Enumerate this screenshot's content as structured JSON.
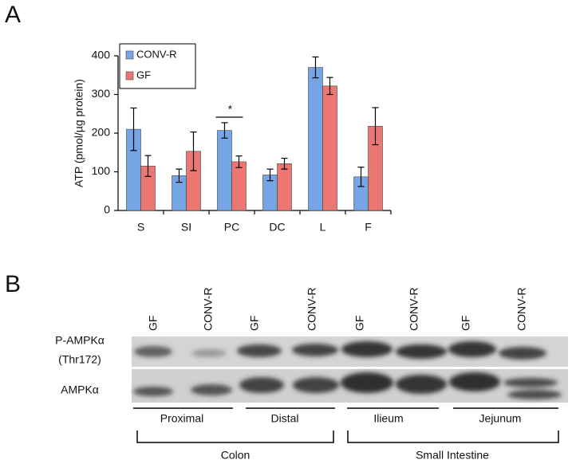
{
  "chart_data": {
    "type": "bar",
    "panel_label": "A",
    "ylabel": "ATP (pmol/µg protein)",
    "categories": [
      "S",
      "SI",
      "PC",
      "DC",
      "L",
      "F"
    ],
    "series": [
      {
        "name": "CONV-R",
        "color": "#76a5e6",
        "values": [
          210,
          90,
          207,
          92,
          370,
          87
        ],
        "errors": [
          55,
          17,
          20,
          15,
          27,
          25
        ]
      },
      {
        "name": "GF",
        "color": "#ec7772",
        "values": [
          115,
          153,
          126,
          121,
          322,
          218
        ],
        "errors": [
          27,
          50,
          15,
          14,
          22,
          48
        ]
      }
    ],
    "ylim": [
      0,
      400
    ],
    "yticks": [
      0,
      100,
      200,
      300,
      400
    ],
    "legend": "top-left",
    "annotations": [
      "*"
    ]
  },
  "panel_b": {
    "panel_label": "B",
    "lanes": [
      "GF",
      "CONV-R",
      "GF",
      "CONV-R",
      "GF",
      "CONV-R",
      "GF",
      "CONV-R"
    ],
    "rows": [
      "P-AMPKα",
      "(Thr172)",
      "AMPKα"
    ],
    "groups": [
      "Proximal",
      "Distal",
      "Ilieum",
      "Jejunum"
    ],
    "super_groups": [
      "Colon",
      "Small Intestine"
    ]
  }
}
